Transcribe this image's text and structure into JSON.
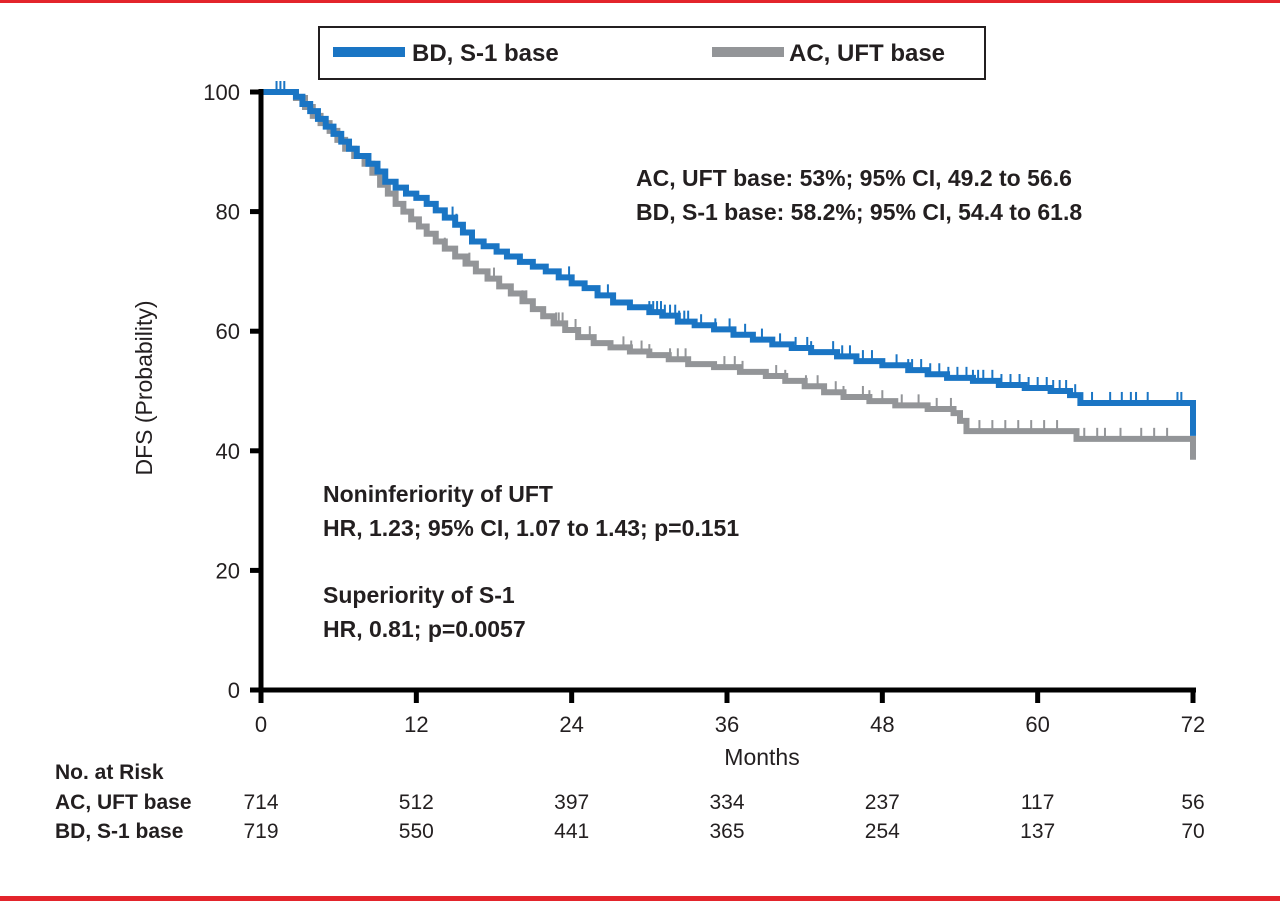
{
  "chart_data": {
    "type": "line",
    "subtype": "kaplan-meier",
    "title": "",
    "xlabel": "Months",
    "ylabel": "DFS (Probability)",
    "xlim": [
      0,
      72
    ],
    "ylim": [
      0,
      100
    ],
    "x_ticks": [
      0,
      12,
      24,
      36,
      48,
      60,
      72
    ],
    "y_ticks": [
      0,
      20,
      40,
      60,
      80,
      100
    ],
    "grid": false,
    "legend_position": "top-center",
    "legend": [
      {
        "name": "BD, S-1 base",
        "color": "#1a75c4"
      },
      {
        "name": "AC, UFT base",
        "color": "#939598"
      }
    ],
    "series": [
      {
        "name": "BD, S-1 base",
        "color": "#1a75c4",
        "steps": [
          [
            0,
            100
          ],
          [
            2.7,
            99.2
          ],
          [
            3.2,
            98.0
          ],
          [
            3.8,
            96.8
          ],
          [
            4.4,
            95.5
          ],
          [
            5.0,
            94.2
          ],
          [
            5.6,
            93.0
          ],
          [
            6.2,
            91.7
          ],
          [
            6.8,
            90.5
          ],
          [
            7.4,
            89.3
          ],
          [
            8.3,
            88.0
          ],
          [
            9.0,
            86.7
          ],
          [
            9.6,
            85.0
          ],
          [
            10.4,
            84.0
          ],
          [
            11.2,
            83.0
          ],
          [
            12.0,
            82.3
          ],
          [
            12.8,
            81.3
          ],
          [
            13.5,
            80.2
          ],
          [
            14.2,
            79.0
          ],
          [
            15.0,
            77.8
          ],
          [
            15.6,
            76.5
          ],
          [
            16.3,
            75.0
          ],
          [
            17.2,
            74.2
          ],
          [
            18.2,
            73.3
          ],
          [
            19.0,
            72.5
          ],
          [
            20.0,
            71.6
          ],
          [
            21.0,
            70.8
          ],
          [
            22.0,
            70.0
          ],
          [
            23.0,
            69.0
          ],
          [
            24.0,
            68.0
          ],
          [
            25.0,
            67.2
          ],
          [
            26.0,
            66.0
          ],
          [
            27.2,
            64.8
          ],
          [
            28.5,
            64.0
          ],
          [
            30.0,
            63.2
          ],
          [
            31.0,
            62.6
          ],
          [
            32.2,
            61.6
          ],
          [
            33.5,
            61.0
          ],
          [
            35.0,
            60.3
          ],
          [
            36.5,
            59.4
          ],
          [
            38.0,
            58.6
          ],
          [
            39.5,
            57.8
          ],
          [
            41.0,
            57.2
          ],
          [
            42.5,
            56.5
          ],
          [
            44.5,
            55.8
          ],
          [
            46.0,
            55.0
          ],
          [
            48.0,
            54.3
          ],
          [
            50.0,
            53.5
          ],
          [
            51.5,
            52.8
          ],
          [
            53.0,
            52.2
          ],
          [
            55.0,
            51.7
          ],
          [
            57.0,
            51.0
          ],
          [
            59.0,
            50.5
          ],
          [
            61.0,
            50.0
          ],
          [
            62.5,
            49.3
          ],
          [
            63.3,
            48.0
          ],
          [
            72.0,
            48.0
          ],
          [
            72.0,
            42.5
          ]
        ],
        "censor_marks_x": [
          1.2,
          1.5,
          1.8,
          14.8,
          15.1,
          23.8,
          26.8,
          30.0,
          30.3,
          30.6,
          30.9,
          31.2,
          31.6,
          32.0,
          32.3,
          32.7,
          33.0,
          34.0,
          35.1,
          36.2,
          37.4,
          38.7,
          40.1,
          41.3,
          42.2,
          42.5,
          44.2,
          44.9,
          45.5,
          46.5,
          47.2,
          49.1,
          50.0,
          50.3,
          51.0,
          51.7,
          52.4,
          53.1,
          53.8,
          54.5,
          55.0,
          55.4,
          55.8,
          56.5,
          57.2,
          57.9,
          58.6,
          59.3,
          60.0,
          60.7,
          61.2,
          61.7,
          62.2,
          62.9,
          64.2,
          65.6,
          66.5,
          67.2,
          67.6,
          68.5,
          70.8,
          71.1
        ]
      },
      {
        "name": "AC, UFT base",
        "color": "#939598",
        "steps": [
          [
            0,
            100
          ],
          [
            2.7,
            99.0
          ],
          [
            3.4,
            97.5
          ],
          [
            4.0,
            96.0
          ],
          [
            4.6,
            94.8
          ],
          [
            5.3,
            93.5
          ],
          [
            5.9,
            92.0
          ],
          [
            6.5,
            90.5
          ],
          [
            7.2,
            89.3
          ],
          [
            8.0,
            88.0
          ],
          [
            8.6,
            86.5
          ],
          [
            9.2,
            84.5
          ],
          [
            9.8,
            83.0
          ],
          [
            10.4,
            81.3
          ],
          [
            11.0,
            80.0
          ],
          [
            11.6,
            78.7
          ],
          [
            12.2,
            77.5
          ],
          [
            12.8,
            76.3
          ],
          [
            13.5,
            75.0
          ],
          [
            14.2,
            73.8
          ],
          [
            15.0,
            72.5
          ],
          [
            15.8,
            71.3
          ],
          [
            16.6,
            70.0
          ],
          [
            17.5,
            68.8
          ],
          [
            18.4,
            67.5
          ],
          [
            19.3,
            66.3
          ],
          [
            20.2,
            65.0
          ],
          [
            21.0,
            63.7
          ],
          [
            21.8,
            62.5
          ],
          [
            22.6,
            61.3
          ],
          [
            23.5,
            60.2
          ],
          [
            24.5,
            59.0
          ],
          [
            25.7,
            58.0
          ],
          [
            27.0,
            57.3
          ],
          [
            28.5,
            56.6
          ],
          [
            30.0,
            56.0
          ],
          [
            31.5,
            55.3
          ],
          [
            33.0,
            54.5
          ],
          [
            35.0,
            54.0
          ],
          [
            37.0,
            53.2
          ],
          [
            39.0,
            52.5
          ],
          [
            40.5,
            51.7
          ],
          [
            42.0,
            50.8
          ],
          [
            43.5,
            49.8
          ],
          [
            45.0,
            49.0
          ],
          [
            47.0,
            48.3
          ],
          [
            49.0,
            47.6
          ],
          [
            51.5,
            47.0
          ],
          [
            53.5,
            46.3
          ],
          [
            54.0,
            45.0
          ],
          [
            54.5,
            43.3
          ],
          [
            62.8,
            43.3
          ],
          [
            63.0,
            42.0
          ],
          [
            72.0,
            42.0
          ],
          [
            72.0,
            38.5
          ]
        ],
        "censor_marks_x": [
          14.2,
          16.1,
          18.0,
          20.2,
          20.5,
          22.8,
          23.0,
          23.3,
          24.3,
          25.4,
          28.0,
          28.6,
          29.4,
          30.0,
          31.6,
          32.2,
          32.8,
          35.8,
          36.6,
          37.2,
          39.8,
          40.5,
          42.1,
          43.0,
          44.4,
          45.0,
          46.5,
          47.0,
          48.0,
          49.5,
          50.8,
          52.2,
          53.3,
          55.5,
          56.5,
          57.5,
          58.5,
          59.5,
          60.5,
          61.5,
          63.6,
          64.6,
          65.2,
          66.4,
          68.0,
          69.0,
          70.0
        ]
      }
    ],
    "annotations": {
      "rates": [
        "AC, UFT base: 53%; 95% CI, 49.2 to 56.6",
        "BD, S-1 base: 58.2%; 95% CI, 54.4 to 61.8"
      ],
      "noninferiority": [
        "Noninferiority of UFT",
        "HR, 1.23; 95% CI, 1.07 to 1.43; p=0.151"
      ],
      "superiority": [
        "Superiority of S-1",
        "HR, 0.81; p=0.0057"
      ]
    },
    "risk_table": {
      "title": "No. at Risk",
      "times": [
        0,
        12,
        24,
        36,
        48,
        60,
        72
      ],
      "rows": [
        {
          "label": "AC, UFT base",
          "values": [
            714,
            512,
            397,
            334,
            237,
            117,
            56
          ]
        },
        {
          "label": "BD, S-1 base",
          "values": [
            719,
            550,
            441,
            365,
            254,
            137,
            70
          ]
        }
      ]
    }
  },
  "theme": {
    "frame_color": "#e3242b",
    "axis_color": "#000000",
    "text_color": "#231f20"
  }
}
